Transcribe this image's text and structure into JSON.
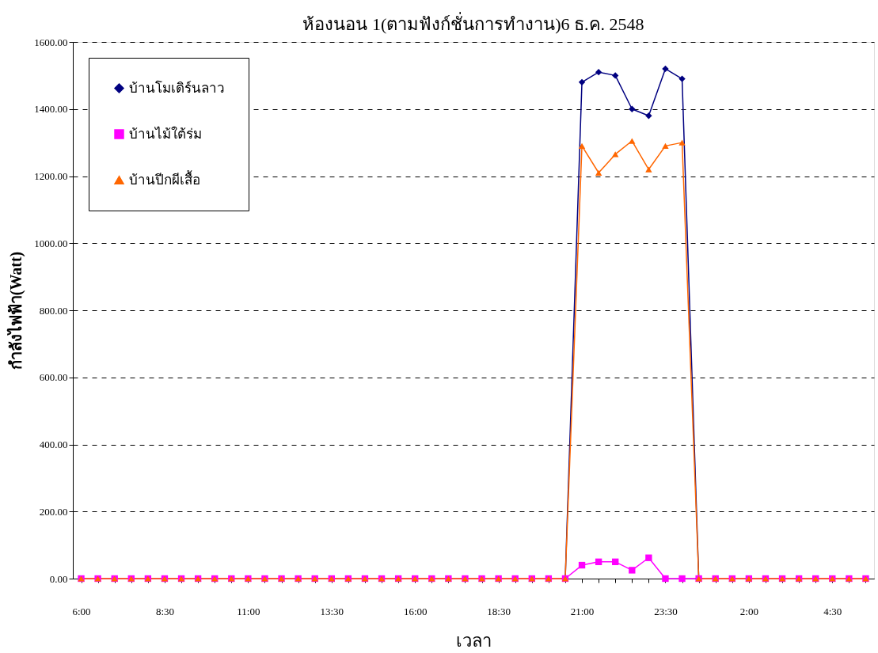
{
  "chart_data": {
    "type": "line",
    "title": "ห้องนอน 1(ตามฟังก์ชั่นการทำงาน)6 ธ.ค. 2548",
    "xlabel": "เวลา",
    "ylabel": "กำลังไฟฟ้า(Watt)",
    "categories": [
      "6:00",
      null,
      null,
      null,
      null,
      "8:30",
      null,
      null,
      null,
      null,
      "11:00",
      null,
      null,
      null,
      null,
      "13:30",
      null,
      null,
      null,
      null,
      "16:00",
      null,
      null,
      null,
      null,
      "18:30",
      null,
      null,
      null,
      null,
      "21:00",
      null,
      null,
      null,
      null,
      "23:30",
      null,
      null,
      null,
      null,
      "2:00",
      null,
      null,
      null,
      null,
      "4:30",
      null,
      null
    ],
    "series": [
      {
        "name": "บ้านโมเดิร์นลาว",
        "color": "#000080",
        "marker": "diamond",
        "values": [
          null,
          null,
          null,
          null,
          null,
          null,
          null,
          null,
          null,
          null,
          null,
          null,
          null,
          null,
          null,
          null,
          null,
          null,
          null,
          null,
          null,
          null,
          null,
          null,
          null,
          null,
          null,
          null,
          null,
          0,
          1480,
          1510,
          1500,
          1400,
          1380,
          1520,
          1490,
          0,
          null,
          null,
          null,
          null,
          null,
          null,
          null,
          null,
          null,
          null
        ]
      },
      {
        "name": "บ้านไม้ใต้ร่ม",
        "color": "#ff00ff",
        "marker": "square",
        "values": [
          0,
          0,
          0,
          0,
          0,
          0,
          0,
          0,
          0,
          0,
          0,
          0,
          0,
          0,
          0,
          0,
          0,
          0,
          0,
          0,
          0,
          0,
          0,
          0,
          0,
          0,
          0,
          0,
          0,
          0,
          40,
          50,
          50,
          25,
          62,
          0,
          0,
          0,
          0,
          0,
          0,
          0,
          0,
          0,
          0,
          0,
          0,
          0
        ]
      },
      {
        "name": "บ้านปีกผีเสื้อ",
        "color": "#ff6600",
        "marker": "triangle",
        "values": [
          0,
          0,
          0,
          0,
          0,
          0,
          0,
          0,
          0,
          0,
          0,
          0,
          0,
          0,
          0,
          0,
          0,
          0,
          0,
          0,
          0,
          0,
          0,
          0,
          0,
          0,
          0,
          0,
          0,
          0,
          1290,
          1210,
          1265,
          1305,
          1220,
          1290,
          1300,
          0,
          0,
          0,
          0,
          0,
          0,
          0,
          0,
          0,
          0,
          0
        ]
      }
    ],
    "ylim": [
      0,
      1600
    ],
    "yticks": [
      {
        "value": 0,
        "label": "0.00"
      },
      {
        "value": 200,
        "label": "200.00"
      },
      {
        "value": 400,
        "label": "400.00"
      },
      {
        "value": 600,
        "label": "600.00"
      },
      {
        "value": 800,
        "label": "800.00"
      },
      {
        "value": 1000,
        "label": "1000.00"
      },
      {
        "value": 1200,
        "label": "1200.00"
      },
      {
        "value": 1400,
        "label": "1400.00"
      },
      {
        "value": 1600,
        "label": "1600.00"
      }
    ],
    "grid": "y",
    "legend": "top left",
    "line_style": "solid"
  }
}
